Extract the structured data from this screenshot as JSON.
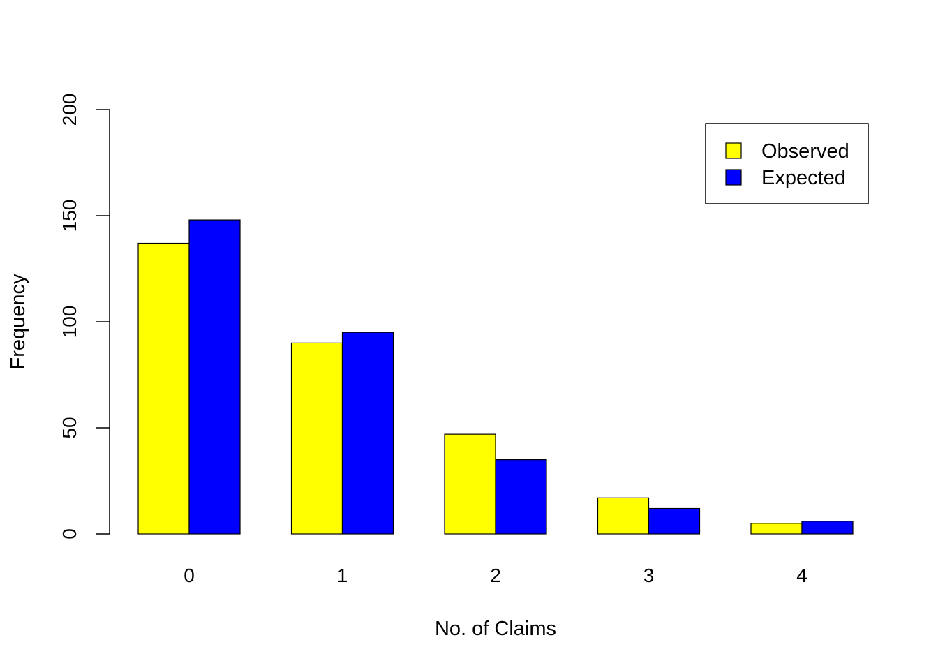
{
  "chart_data": {
    "type": "bar",
    "mode": "grouped",
    "categories": [
      "0",
      "1",
      "2",
      "3",
      "4"
    ],
    "series": [
      {
        "name": "Observed",
        "color": "#ffff00",
        "values": [
          137,
          90,
          47,
          17,
          5
        ]
      },
      {
        "name": "Expected",
        "color": "#0000ff",
        "values": [
          148,
          95,
          35,
          12,
          6
        ]
      }
    ],
    "xlabel": "No. of Claims",
    "ylabel": "Frequency",
    "ylim": [
      0,
      200
    ],
    "yticks": [
      0,
      50,
      100,
      150,
      200
    ],
    "grid": false,
    "legend_position": "top-right"
  }
}
